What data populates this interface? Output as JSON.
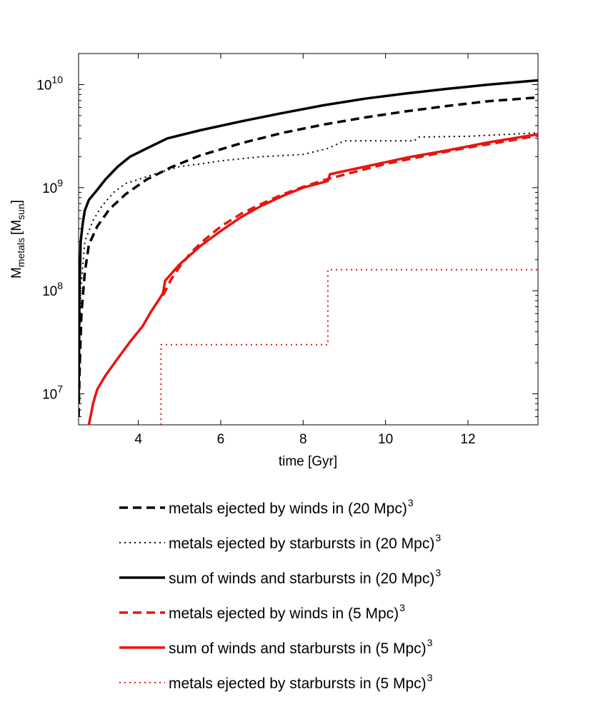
{
  "chart_data": {
    "type": "line",
    "yscale": "log",
    "xlabel": "time [Gyr]",
    "ylabel": {
      "base": "M",
      "sub": "metals",
      "unit_open": "[M",
      "unit_sub": "sun",
      "unit_close": "]"
    },
    "xlim": [
      2.55,
      13.7
    ],
    "ylim": [
      5000000,
      20000000000
    ],
    "xticks": [
      4,
      6,
      8,
      10,
      12
    ],
    "yticks": [
      {
        "value": 10000000,
        "base": "10",
        "exp": "7"
      },
      {
        "value": 100000000,
        "base": "10",
        "exp": "8"
      },
      {
        "value": 1000000000,
        "base": "10",
        "exp": "9"
      },
      {
        "value": 10000000000,
        "base": "10",
        "exp": "10"
      }
    ],
    "series": [
      {
        "name": "metals ejected by winds in (20 Mpc)",
        "exp": "3",
        "color": "#000000",
        "style": "dashed",
        "x": [
          2.55,
          2.58,
          2.62,
          2.7,
          2.8,
          3.0,
          3.3,
          3.7,
          4.2,
          4.8,
          5.5,
          6.5,
          7.5,
          8.5,
          9.5,
          10.5,
          11.5,
          12.5,
          13.7
        ],
        "y": [
          6000000,
          20000000,
          60000000,
          150000000,
          280000000,
          420000000,
          620000000,
          870000000,
          1200000000,
          1580000000,
          2050000000,
          2700000000,
          3400000000,
          4100000000,
          4800000000,
          5500000000,
          6200000000,
          6900000000,
          7500000000
        ]
      },
      {
        "name": "metals ejected by starbursts in (20 Mpc)",
        "exp": "3",
        "color": "#000000",
        "style": "dotted",
        "x": [
          2.55,
          2.6,
          2.7,
          2.9,
          3.1,
          3.4,
          3.7,
          4.0,
          4.5,
          5.0,
          5.5,
          6.0,
          7.0,
          8.0,
          8.6,
          9.0,
          10.0,
          10.7,
          10.8,
          12.0,
          13.7
        ],
        "y": [
          8000000,
          100000000,
          300000000,
          480000000,
          650000000,
          900000000,
          1100000000,
          1200000000,
          1400000000,
          1600000000,
          1700000000,
          1820000000,
          2000000000,
          2100000000,
          2400000000,
          2850000000,
          2850000000,
          2850000000,
          3100000000,
          3150000000,
          3400000000
        ]
      },
      {
        "name": "sum of winds and starbursts in (20 Mpc)",
        "exp": "3",
        "color": "#000000",
        "style": "solid",
        "x": [
          2.55,
          2.57,
          2.6,
          2.65,
          2.7,
          2.8,
          3.0,
          3.2,
          3.5,
          3.8,
          4.2,
          4.7,
          5.5,
          6.5,
          7.5,
          8.5,
          9.5,
          10.5,
          11.5,
          12.5,
          13.7
        ],
        "y": [
          8000000,
          100000000,
          300000000,
          450000000,
          600000000,
          760000000,
          950000000,
          1200000000,
          1600000000,
          2000000000,
          2400000000,
          3000000000,
          3600000000,
          4400000000,
          5300000000,
          6300000000,
          7300000000,
          8200000000,
          9100000000,
          10000000000,
          11000000000
        ]
      },
      {
        "name": "metals ejected by winds in (5 Mpc)",
        "exp": "3",
        "color": "#e8140f",
        "style": "dashed",
        "x": [
          4.6,
          4.8,
          5.0,
          5.3,
          5.6,
          6.0,
          6.5,
          7.0,
          7.5,
          8.0,
          8.5,
          9.0,
          10.0,
          11.0,
          12.0,
          13.0,
          13.7
        ],
        "y": [
          90000000,
          130000000,
          170000000,
          240000000,
          310000000,
          420000000,
          560000000,
          700000000,
          860000000,
          1020000000,
          1180000000,
          1340000000,
          1700000000,
          2050000000,
          2450000000,
          2850000000,
          3200000000
        ]
      },
      {
        "name": "sum of winds and starbursts in (5 Mpc)",
        "exp": "3",
        "color": "#e8140f",
        "style": "solid",
        "x": [
          2.8,
          2.9,
          3.0,
          3.2,
          3.5,
          3.8,
          4.1,
          4.3,
          4.5,
          4.6,
          4.65,
          5.0,
          5.5,
          6.0,
          6.5,
          7.0,
          7.5,
          8.0,
          8.6,
          8.65,
          9.5,
          10.5,
          11.5,
          12.5,
          13.7
        ],
        "y": [
          5000000,
          8000000,
          11000000,
          15000000,
          22000000,
          32000000,
          45000000,
          62000000,
          82000000,
          95000000,
          125000000,
          180000000,
          270000000,
          380000000,
          520000000,
          670000000,
          830000000,
          1000000000,
          1160000000,
          1350000000,
          1600000000,
          1950000000,
          2300000000,
          2750000000,
          3300000000
        ]
      },
      {
        "name": "metals ejected by starbursts in (5 Mpc)",
        "exp": "3",
        "color": "#e8140f",
        "style": "dotted",
        "x": [
          4.55,
          4.55,
          8.6,
          8.6,
          13.7
        ],
        "y": [
          5000000,
          30000000,
          30000000,
          160000000,
          160000000
        ]
      }
    ],
    "legend": {
      "placement": "below",
      "order": [
        0,
        1,
        2,
        3,
        4,
        5
      ]
    }
  }
}
